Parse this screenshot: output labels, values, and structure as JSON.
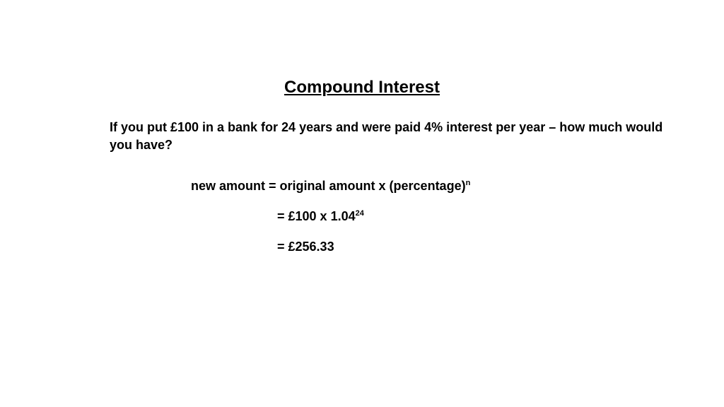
{
  "title": "Compound Interest",
  "question": "If you put £100 in a bank for 24 years and were paid 4% interest per year – how much would you have?",
  "formula": {
    "lhs": "new amount",
    "rhs": "original amount x (percentage)",
    "exponent": "n"
  },
  "step1": {
    "prefix": "= £100 x 1.04",
    "exponent": "24"
  },
  "step2": "= £256.33",
  "colors": {
    "background": "#ffffff",
    "text": "#000000"
  },
  "font": {
    "family": "Comic Sans MS",
    "title_size": 24,
    "body_size": 18,
    "sup_size": 11,
    "weight": "bold"
  }
}
